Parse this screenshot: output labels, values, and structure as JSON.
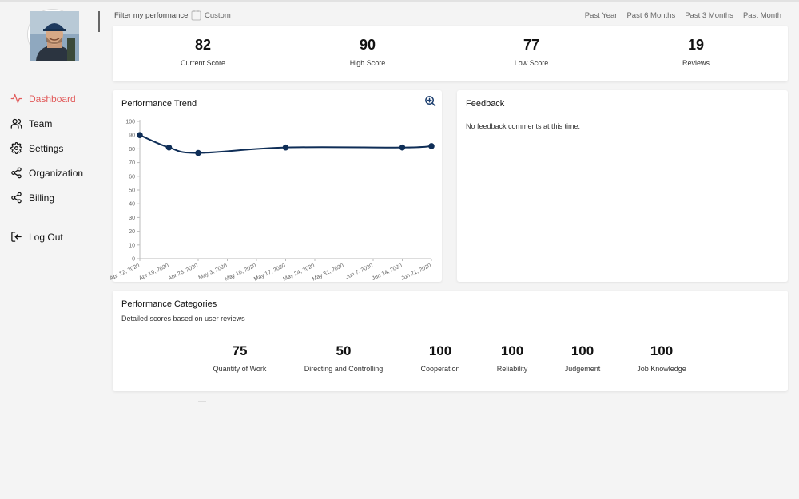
{
  "sidebar": {
    "items": [
      {
        "label": "Dashboard",
        "icon": "activity-icon"
      },
      {
        "label": "Team",
        "icon": "users-icon"
      },
      {
        "label": "Settings",
        "icon": "gear-icon"
      },
      {
        "label": "Organization",
        "icon": "share-icon"
      },
      {
        "label": "Billing",
        "icon": "share-icon"
      }
    ],
    "logout_label": "Log Out",
    "active_color": "#e25c5c"
  },
  "filter": {
    "label": "Filter my performance",
    "custom_label": "Custom",
    "ranges": [
      "Past Year",
      "Past 6 Months",
      "Past 3 Months",
      "Past Month"
    ]
  },
  "stats": [
    {
      "value": "82",
      "label": "Current Score"
    },
    {
      "value": "90",
      "label": "High Score"
    },
    {
      "value": "77",
      "label": "Low Score"
    },
    {
      "value": "19",
      "label": "Reviews"
    }
  ],
  "trend": {
    "title": "Performance Trend"
  },
  "chart_data": {
    "type": "line",
    "x": [
      "Apr 12, 2020",
      "Apr 19, 2020",
      "Apr 26, 2020",
      "May 3, 2020",
      "May 10, 2020",
      "May 17, 2020",
      "May 24, 2020",
      "May 31, 2020",
      "Jun 7, 2020",
      "Jun 14, 2020",
      "Jun 21, 2020"
    ],
    "points": [
      {
        "x": "Apr 12, 2020",
        "y": 90
      },
      {
        "x": "Apr 19, 2020",
        "y": 81
      },
      {
        "x": "Apr 26, 2020",
        "y": 77
      },
      {
        "x": "May 17, 2020",
        "y": 81
      },
      {
        "x": "Jun 14, 2020",
        "y": 81
      },
      {
        "x": "Jun 21, 2020",
        "y": 82
      }
    ],
    "yticks": [
      0,
      10,
      20,
      30,
      40,
      50,
      60,
      70,
      80,
      90,
      100
    ],
    "ylim": [
      0,
      100
    ],
    "color": "#0f2e57",
    "grid": false
  },
  "feedback": {
    "title": "Feedback",
    "message": "No feedback comments at this time."
  },
  "categories": {
    "title": "Performance Categories",
    "subtitle": "Detailed scores based on user reviews",
    "items": [
      {
        "value": "75",
        "label": "Quantity of Work"
      },
      {
        "value": "50",
        "label": "Directing and Controlling"
      },
      {
        "value": "100",
        "label": "Cooperation"
      },
      {
        "value": "100",
        "label": "Reliability"
      },
      {
        "value": "100",
        "label": "Judgement"
      },
      {
        "value": "100",
        "label": "Job Knowledge"
      }
    ]
  }
}
